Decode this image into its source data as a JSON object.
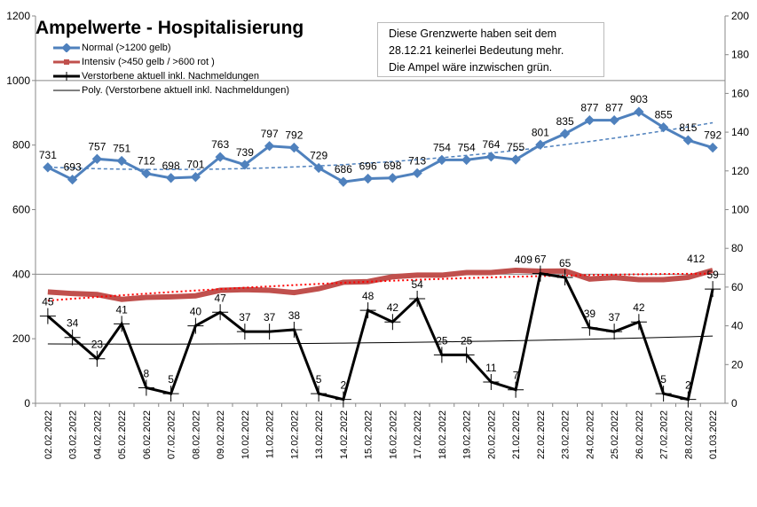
{
  "chart_data": {
    "type": "line",
    "title": "Ampelwerte - Hospitalisierung",
    "annotation": [
      "Diese Grenzwerte haben seit dem",
      "28.12.21  keinerlei Bedeutung mehr.",
      "Die Ampel wäre inzwischen grün."
    ],
    "categories": [
      "02.02.2022",
      "03.02.2022",
      "04.02.2022",
      "05.02.2022",
      "06.02.2022",
      "07.02.2022",
      "08.02.2022",
      "09.02.2022",
      "10.02.2022",
      "11.02.2022",
      "12.02.2022",
      "13.02.2022",
      "14.02.2022",
      "15.02.2022",
      "16.02.2022",
      "17.02.2022",
      "18.02.2022",
      "19.02.2022",
      "20.02.2022",
      "21.02.2022",
      "22.02.2022",
      "23.02.2022",
      "24.02.2022",
      "25.02.2022",
      "26.02.2022",
      "27.02.2022",
      "28.02.2022",
      "01.03.2022"
    ],
    "y_left": {
      "range": [
        0,
        1200
      ],
      "ticks": [
        "0",
        "200",
        "400",
        "600",
        "800",
        "1000",
        "1200"
      ]
    },
    "y_right": {
      "range": [
        0,
        200
      ],
      "ticks": [
        "0",
        "20",
        "40",
        "60",
        "80",
        "100",
        "120",
        "140",
        "160",
        "180",
        "200"
      ]
    },
    "gridlines_left": [
      400,
      1000
    ],
    "legend_placement": "top-left",
    "series": [
      {
        "name": "Normal (>1200 gelb)",
        "axis": "left",
        "color": "#4F81BD",
        "marker": "diamond",
        "labels": true,
        "trendline": "poly-dashed",
        "values": [
          731,
          693,
          757,
          751,
          712,
          698,
          701,
          763,
          739,
          797,
          792,
          729,
          686,
          696,
          698,
          713,
          754,
          754,
          764,
          755,
          801,
          835,
          877,
          877,
          903,
          855,
          815,
          792
        ]
      },
      {
        "name": "Intensiv (>450 gelb / >600 rot )",
        "axis": "left",
        "color": "#C0504D",
        "marker": "square",
        "trendline": "poly-dotted-red",
        "values": [
          345,
          340,
          337,
          322,
          328,
          330,
          333,
          350,
          352,
          350,
          343,
          355,
          375,
          377,
          392,
          397,
          397,
          405,
          405,
          412,
          409,
          410,
          385,
          390,
          383,
          383,
          390,
          412
        ],
        "point_labels": {
          "20": "409",
          "27": "412"
        }
      },
      {
        "name": "Verstorbene aktuell inkl. Nachmeldungen",
        "axis": "right",
        "color": "#000000",
        "marker": "plus",
        "labels": true,
        "values": [
          45,
          34,
          23,
          41,
          8,
          5,
          40,
          47,
          37,
          37,
          38,
          5,
          2,
          48,
          42,
          54,
          25,
          25,
          11,
          7,
          67,
          65,
          39,
          37,
          42,
          5,
          2,
          59
        ]
      },
      {
        "name": "Poly. (Verstorbene aktuell inkl. Nachmeldungen)",
        "axis": "right",
        "color": "#000000",
        "trendline_of": 2
      }
    ]
  }
}
